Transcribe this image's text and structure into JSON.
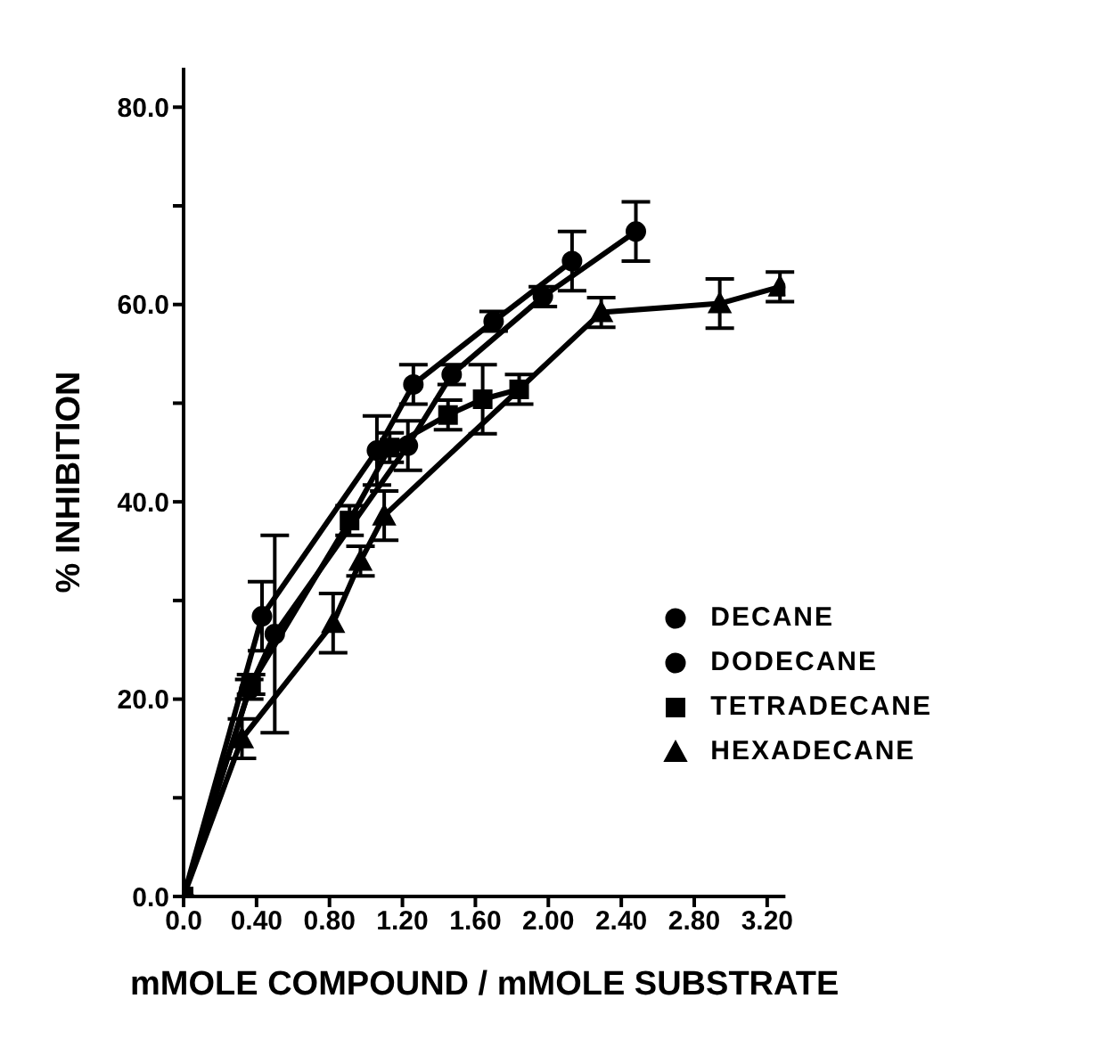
{
  "chart_data": {
    "type": "line",
    "xlabel": "mMOLE COMPOUND / mMOLE SUBSTRATE",
    "ylabel": "% INHIBITION",
    "xlim": [
      0,
      3.3
    ],
    "ylim": [
      0,
      84
    ],
    "xticks": [
      {
        "value": 0,
        "label": "0.0"
      },
      {
        "value": 0.4,
        "label": "0.40"
      },
      {
        "value": 0.8,
        "label": "0.80"
      },
      {
        "value": 1.2,
        "label": "1.20"
      },
      {
        "value": 1.6,
        "label": "1.60"
      },
      {
        "value": 2.0,
        "label": "2.00"
      },
      {
        "value": 2.4,
        "label": "2.40"
      },
      {
        "value": 2.8,
        "label": "2.80"
      },
      {
        "value": 3.2,
        "label": "3.20"
      }
    ],
    "yticks": [
      {
        "value": 0,
        "label": "0.0"
      },
      {
        "value": 10,
        "label": null
      },
      {
        "value": 20,
        "label": "20.0"
      },
      {
        "value": 30,
        "label": null
      },
      {
        "value": 40,
        "label": "40.0"
      },
      {
        "value": 50,
        "label": null
      },
      {
        "value": 60,
        "label": "60.0"
      },
      {
        "value": 70,
        "label": null
      },
      {
        "value": 80,
        "label": "80.0"
      }
    ],
    "legend": "right",
    "series": [
      {
        "name": "DECANE",
        "color": "#000000",
        "marker": "circle",
        "x": [
          0,
          0.36,
          0.5,
          1.23,
          1.47,
          1.97,
          2.48
        ],
        "values": [
          0,
          21,
          26.6,
          45.7,
          52.9,
          60.8,
          67.4
        ],
        "errors": [
          null,
          1,
          10,
          2.5,
          1,
          1,
          3
        ]
      },
      {
        "name": "DODECANE",
        "color": "#000000",
        "marker": "circle",
        "x": [
          0,
          0.43,
          1.06,
          1.26,
          1.7,
          2.13
        ],
        "values": [
          0,
          28.4,
          45.2,
          51.9,
          58.3,
          64.4
        ],
        "errors": [
          null,
          3.5,
          3.5,
          2,
          1,
          3
        ]
      },
      {
        "name": "TETRADECANE",
        "color": "#000000",
        "marker": "square",
        "x": [
          0,
          0.37,
          0.91,
          1.13,
          1.45,
          1.64,
          1.84
        ],
        "values": [
          0,
          21.5,
          38.1,
          45.5,
          48.8,
          50.4,
          51.4
        ],
        "errors": [
          null,
          1,
          1.5,
          1.5,
          1.5,
          3.5,
          1.5
        ]
      },
      {
        "name": "HEXADECANE",
        "color": "#000000",
        "marker": "triangle",
        "x": [
          0,
          0.32,
          0.82,
          0.97,
          1.1,
          2.29,
          2.94,
          3.27
        ],
        "values": [
          0,
          16,
          27.7,
          34,
          38.6,
          59.2,
          60.1,
          61.8
        ],
        "errors": [
          null,
          2,
          3,
          1.5,
          2.5,
          1.5,
          2.5,
          1.5
        ]
      }
    ]
  }
}
